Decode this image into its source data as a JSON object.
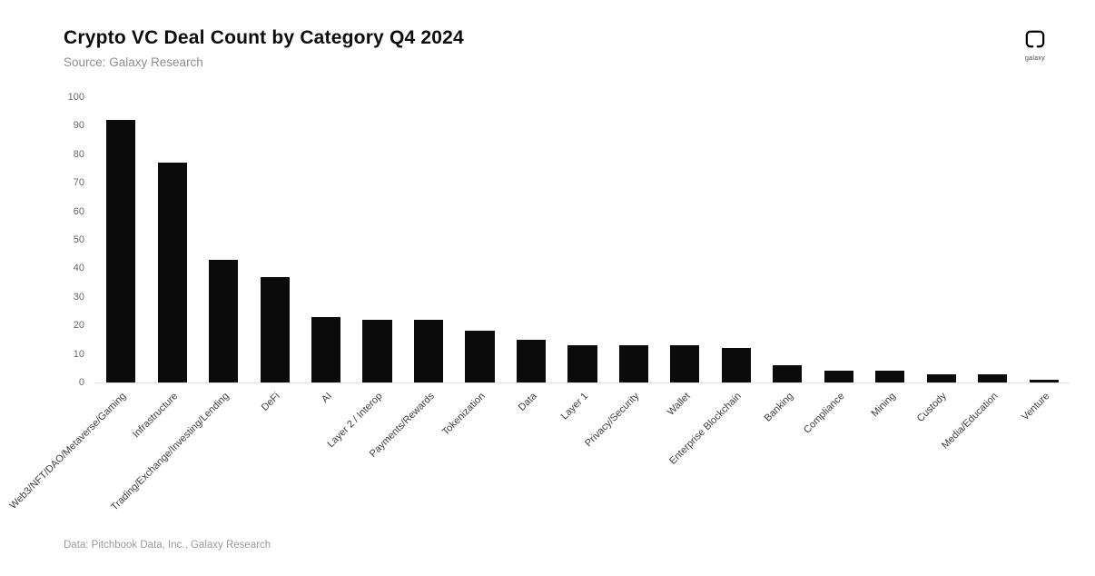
{
  "logo": {
    "text": "galaxy"
  },
  "footer": {
    "note": "Data: Pitchbook Data, Inc., Galaxy Research"
  },
  "chart_data": {
    "type": "bar",
    "title": "Crypto VC Deal Count by Category Q4 2024",
    "subtitle": "Source: Galaxy Research",
    "categories": [
      "Web3/NFT/DAO/Metaverse/Gaming",
      "Infrastructure",
      "Trading/Exchange/Investing/Lending",
      "DeFi",
      "AI",
      "Layer 2 / Interop",
      "Payments/Rewards",
      "Tokenization",
      "Data",
      "Layer 1",
      "Privacy/Security",
      "Wallet",
      "Enterprise Blockchain",
      "Banking",
      "Compliance",
      "Mining",
      "Custody",
      "Media/Education",
      "Venture"
    ],
    "values": [
      92,
      77,
      43,
      37,
      23,
      22,
      22,
      18,
      15,
      13,
      13,
      13,
      12,
      6,
      4,
      4,
      3,
      3,
      1
    ],
    "xlabel": "",
    "ylabel": "",
    "ylim": [
      0,
      100
    ],
    "yticks": [
      0,
      10,
      20,
      30,
      40,
      50,
      60,
      70,
      80,
      90,
      100
    ],
    "bar_color": "#0b0b0b",
    "grid": false,
    "legend": "none"
  }
}
